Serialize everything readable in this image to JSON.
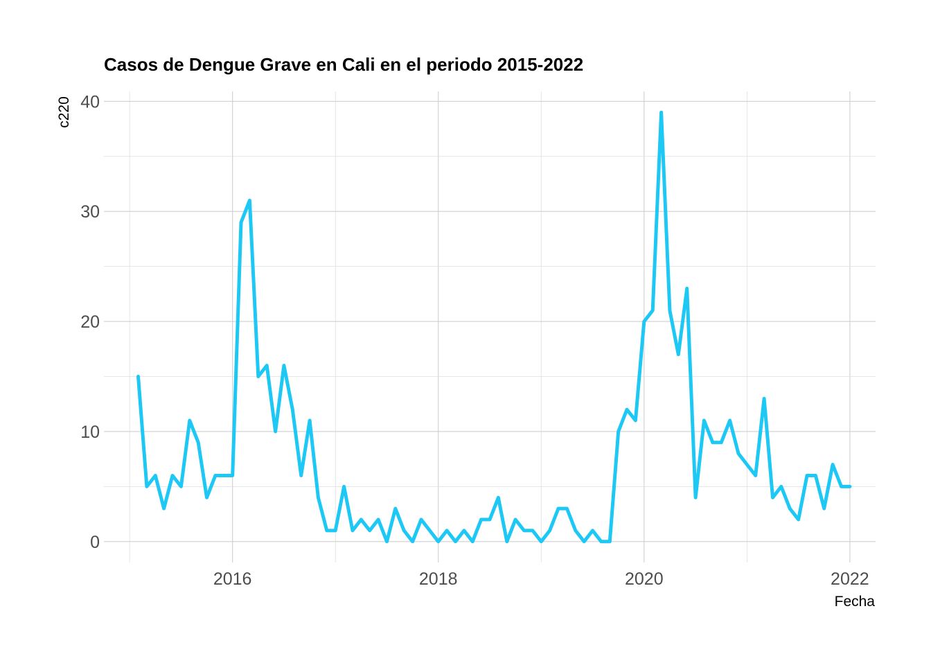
{
  "chart_data": {
    "type": "line",
    "title": "Casos de Dengue Grave en Cali en el periodo 2015-2022",
    "xlabel": "Fecha",
    "ylabel": "c220",
    "x_ticks": [
      "2016",
      "2018",
      "2020",
      "2022"
    ],
    "y_ticks": [
      "0",
      "10",
      "20",
      "30",
      "40"
    ],
    "xlim": [
      "2014-10",
      "2022-04"
    ],
    "ylim": [
      -1.9,
      40.9
    ],
    "grid": true,
    "legend": "none",
    "color": "#1ec8f5",
    "series": [
      {
        "x": [
          "2015-02",
          "2015-03",
          "2015-04",
          "2015-05",
          "2015-06",
          "2015-07",
          "2015-08",
          "2015-09",
          "2015-10",
          "2015-11",
          "2015-12",
          "2016-01",
          "2016-02",
          "2016-03",
          "2016-04",
          "2016-05",
          "2016-06",
          "2016-07",
          "2016-08",
          "2016-09",
          "2016-10",
          "2016-11",
          "2016-12",
          "2017-01",
          "2017-02",
          "2017-03",
          "2017-04",
          "2017-05",
          "2017-06",
          "2017-07",
          "2017-08",
          "2017-09",
          "2017-10",
          "2017-11",
          "2017-12",
          "2018-01",
          "2018-02",
          "2018-03",
          "2018-04",
          "2018-05",
          "2018-06",
          "2018-07",
          "2018-08",
          "2018-09",
          "2018-10",
          "2018-11",
          "2018-12",
          "2019-01",
          "2019-02",
          "2019-03",
          "2019-04",
          "2019-05",
          "2019-06",
          "2019-07",
          "2019-08",
          "2019-09",
          "2019-10",
          "2019-11",
          "2019-12",
          "2020-01",
          "2020-02",
          "2020-03",
          "2020-04",
          "2020-05",
          "2020-06",
          "2020-07",
          "2020-08",
          "2020-09",
          "2020-10",
          "2020-11",
          "2020-12",
          "2021-01",
          "2021-02",
          "2021-03",
          "2021-04",
          "2021-05",
          "2021-06",
          "2021-07",
          "2021-08",
          "2021-09",
          "2021-10",
          "2021-11",
          "2021-12",
          "2022-01"
        ],
        "y": [
          15,
          5,
          6,
          3,
          6,
          5,
          11,
          9,
          4,
          6,
          6,
          6,
          29,
          31,
          15,
          16,
          10,
          16,
          12,
          6,
          11,
          4,
          1,
          1,
          5,
          1,
          2,
          1,
          2,
          0,
          3,
          1,
          0,
          2,
          1,
          0,
          1,
          0,
          1,
          0,
          2,
          2,
          4,
          0,
          2,
          1,
          1,
          0,
          1,
          3,
          3,
          1,
          0,
          1,
          0,
          0,
          10,
          12,
          11,
          20,
          21,
          39,
          21,
          17,
          23,
          4,
          11,
          9,
          9,
          11,
          8,
          7,
          6,
          13,
          4,
          5,
          3,
          2,
          6,
          6,
          3,
          7,
          5,
          5
        ]
      }
    ]
  }
}
